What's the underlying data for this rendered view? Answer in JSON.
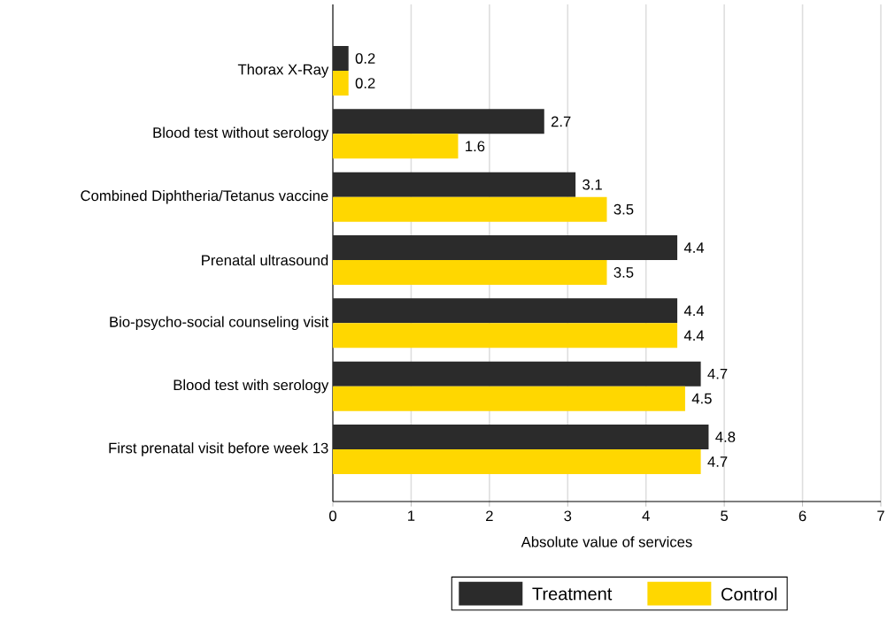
{
  "chart_data": {
    "type": "bar",
    "orientation": "horizontal",
    "xlabel": "Absolute value of services",
    "categories": [
      "Thorax X-Ray",
      "Blood test without serology",
      "Combined Diphtheria/Tetanus vaccine",
      "Prenatal ultrasound",
      "Bio-psycho-social counseling visit",
      "Blood test with serology",
      "First prenatal visit before week 13"
    ],
    "series": [
      {
        "name": "Treatment",
        "color": "#2b2b2b",
        "values": [
          0.2,
          2.7,
          3.1,
          4.4,
          4.4,
          4.7,
          4.8
        ]
      },
      {
        "name": "Control",
        "color": "#ffd700",
        "values": [
          0.2,
          1.6,
          3.5,
          3.5,
          4.4,
          4.5,
          4.7
        ]
      }
    ],
    "xlim": [
      0,
      7
    ],
    "xticks": [
      0,
      1,
      2,
      3,
      4,
      5,
      6,
      7
    ],
    "grid": "x",
    "legend": "bottom",
    "data_labels": true
  }
}
